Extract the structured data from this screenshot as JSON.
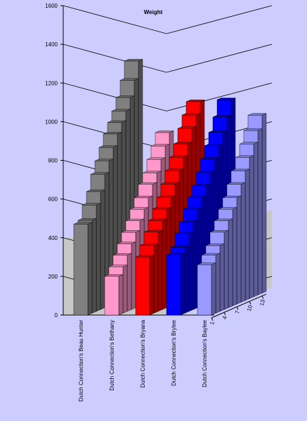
{
  "chart_data": {
    "type": "bar3d",
    "title": "Weight",
    "x": [
      1,
      2,
      3,
      4,
      5,
      6,
      7,
      8,
      9,
      10,
      11,
      12,
      13
    ],
    "xticks": [
      1,
      4,
      7,
      10,
      13
    ],
    "ylim": [
      0,
      1600
    ],
    "yticks": [
      0,
      200,
      400,
      600,
      800,
      1000,
      1200,
      1400,
      1600
    ],
    "grid": true,
    "series": [
      {
        "name": "Dutch Connection's Beau Hunter",
        "color": "#808080",
        "values": [
          470,
          480,
          550,
          610,
          690,
          750,
          810,
          870,
          920,
          970,
          1030,
          1110,
          1200
        ]
      },
      {
        "name": "Dutch Connection's Bethany",
        "color": "#ff99cc",
        "values": [
          200,
          240,
          290,
          340,
          390,
          440,
          490,
          540,
          600,
          650,
          710,
          770,
          830
        ]
      },
      {
        "name": "Dutch Connection's Bryana",
        "color": "#ff0000",
        "values": [
          300,
          350,
          410,
          460,
          510,
          560,
          620,
          680,
          740,
          800,
          870,
          930,
          990
        ]
      },
      {
        "name": "Dutch Connection's Brylee",
        "color": "#0000ff",
        "values": [
          310,
          340,
          400,
          450,
          510,
          560,
          610,
          670,
          730,
          790,
          850,
          920,
          1000
        ]
      },
      {
        "name": "Dutch Connection's Baylee",
        "color": "#9999ff",
        "values": [
          260,
          300,
          340,
          400,
          450,
          500,
          550,
          610,
          670,
          730,
          790,
          850,
          920
        ]
      }
    ]
  }
}
